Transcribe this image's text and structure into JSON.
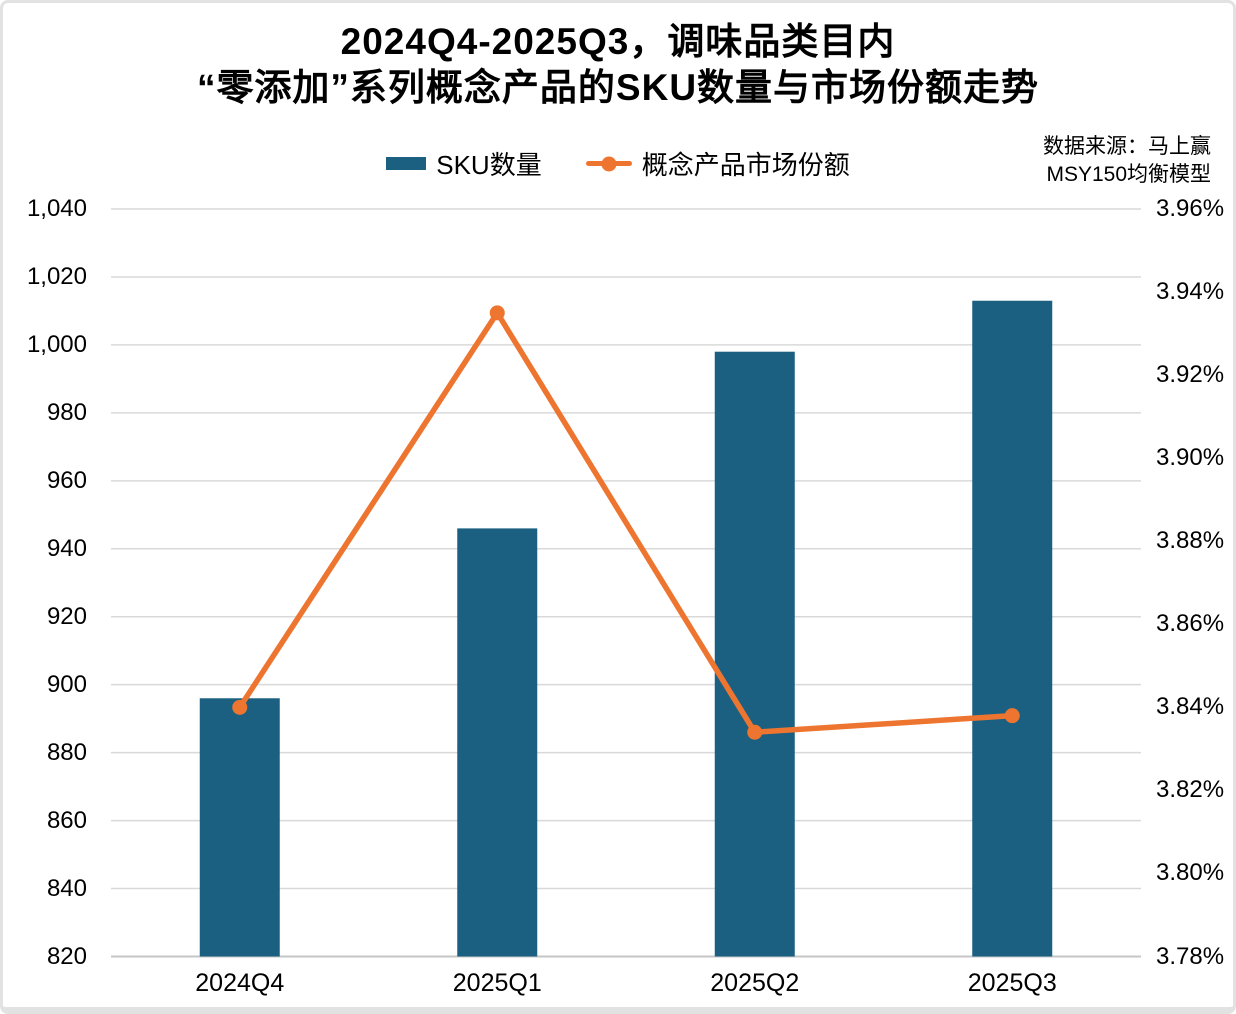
{
  "title": {
    "line1": "2024Q4-2025Q3，调味品类目内",
    "line2": "“零添加”系列概念产品的SKU数量与市场份额走势"
  },
  "source": {
    "line1": "数据来源：马上赢",
    "line2": "MSY150均衡模型"
  },
  "legend": [
    {
      "label": "SKU数量",
      "type": "bar",
      "color": "#1B6080"
    },
    {
      "label": "概念产品市场份额",
      "type": "line",
      "color": "#ED7530"
    }
  ],
  "colors": {
    "bar": "#1B6080",
    "line": "#ED7530",
    "grid": "#D9D9D9",
    "axis_line": "#C6C6C6",
    "background": "#FFFFFF",
    "border": "#E2E2E2"
  },
  "chart_data": {
    "type": "bar",
    "subtype": "combo-bar-line",
    "title": "2024Q4-2025Q3，调味品类目内“零添加”系列概念产品的SKU数量与市场份额走势",
    "categories": [
      "2024Q4",
      "2025Q1",
      "2025Q2",
      "2025Q3"
    ],
    "series": [
      {
        "name": "SKU数量",
        "type": "bar",
        "axis": "left",
        "color": "#1B6080",
        "values": [
          896,
          946,
          998,
          1013
        ]
      },
      {
        "name": "概念产品市场份额",
        "type": "line",
        "axis": "right",
        "color": "#ED7530",
        "unit": "%",
        "values": [
          3.84,
          3.935,
          3.834,
          3.838
        ]
      }
    ],
    "left_axis": {
      "min": 820,
      "max": 1040,
      "step": 20,
      "tick_labels": [
        "820",
        "840",
        "860",
        "880",
        "900",
        "920",
        "940",
        "960",
        "980",
        "1,000",
        "1,020",
        "1,040"
      ]
    },
    "right_axis": {
      "min": 3.78,
      "max": 3.96,
      "step": 0.02,
      "tick_labels": [
        "3.78%",
        "3.80%",
        "3.82%",
        "3.84%",
        "3.86%",
        "3.88%",
        "3.90%",
        "3.92%",
        "3.94%",
        "3.96%"
      ]
    },
    "grid": true,
    "legend_position": "top"
  }
}
